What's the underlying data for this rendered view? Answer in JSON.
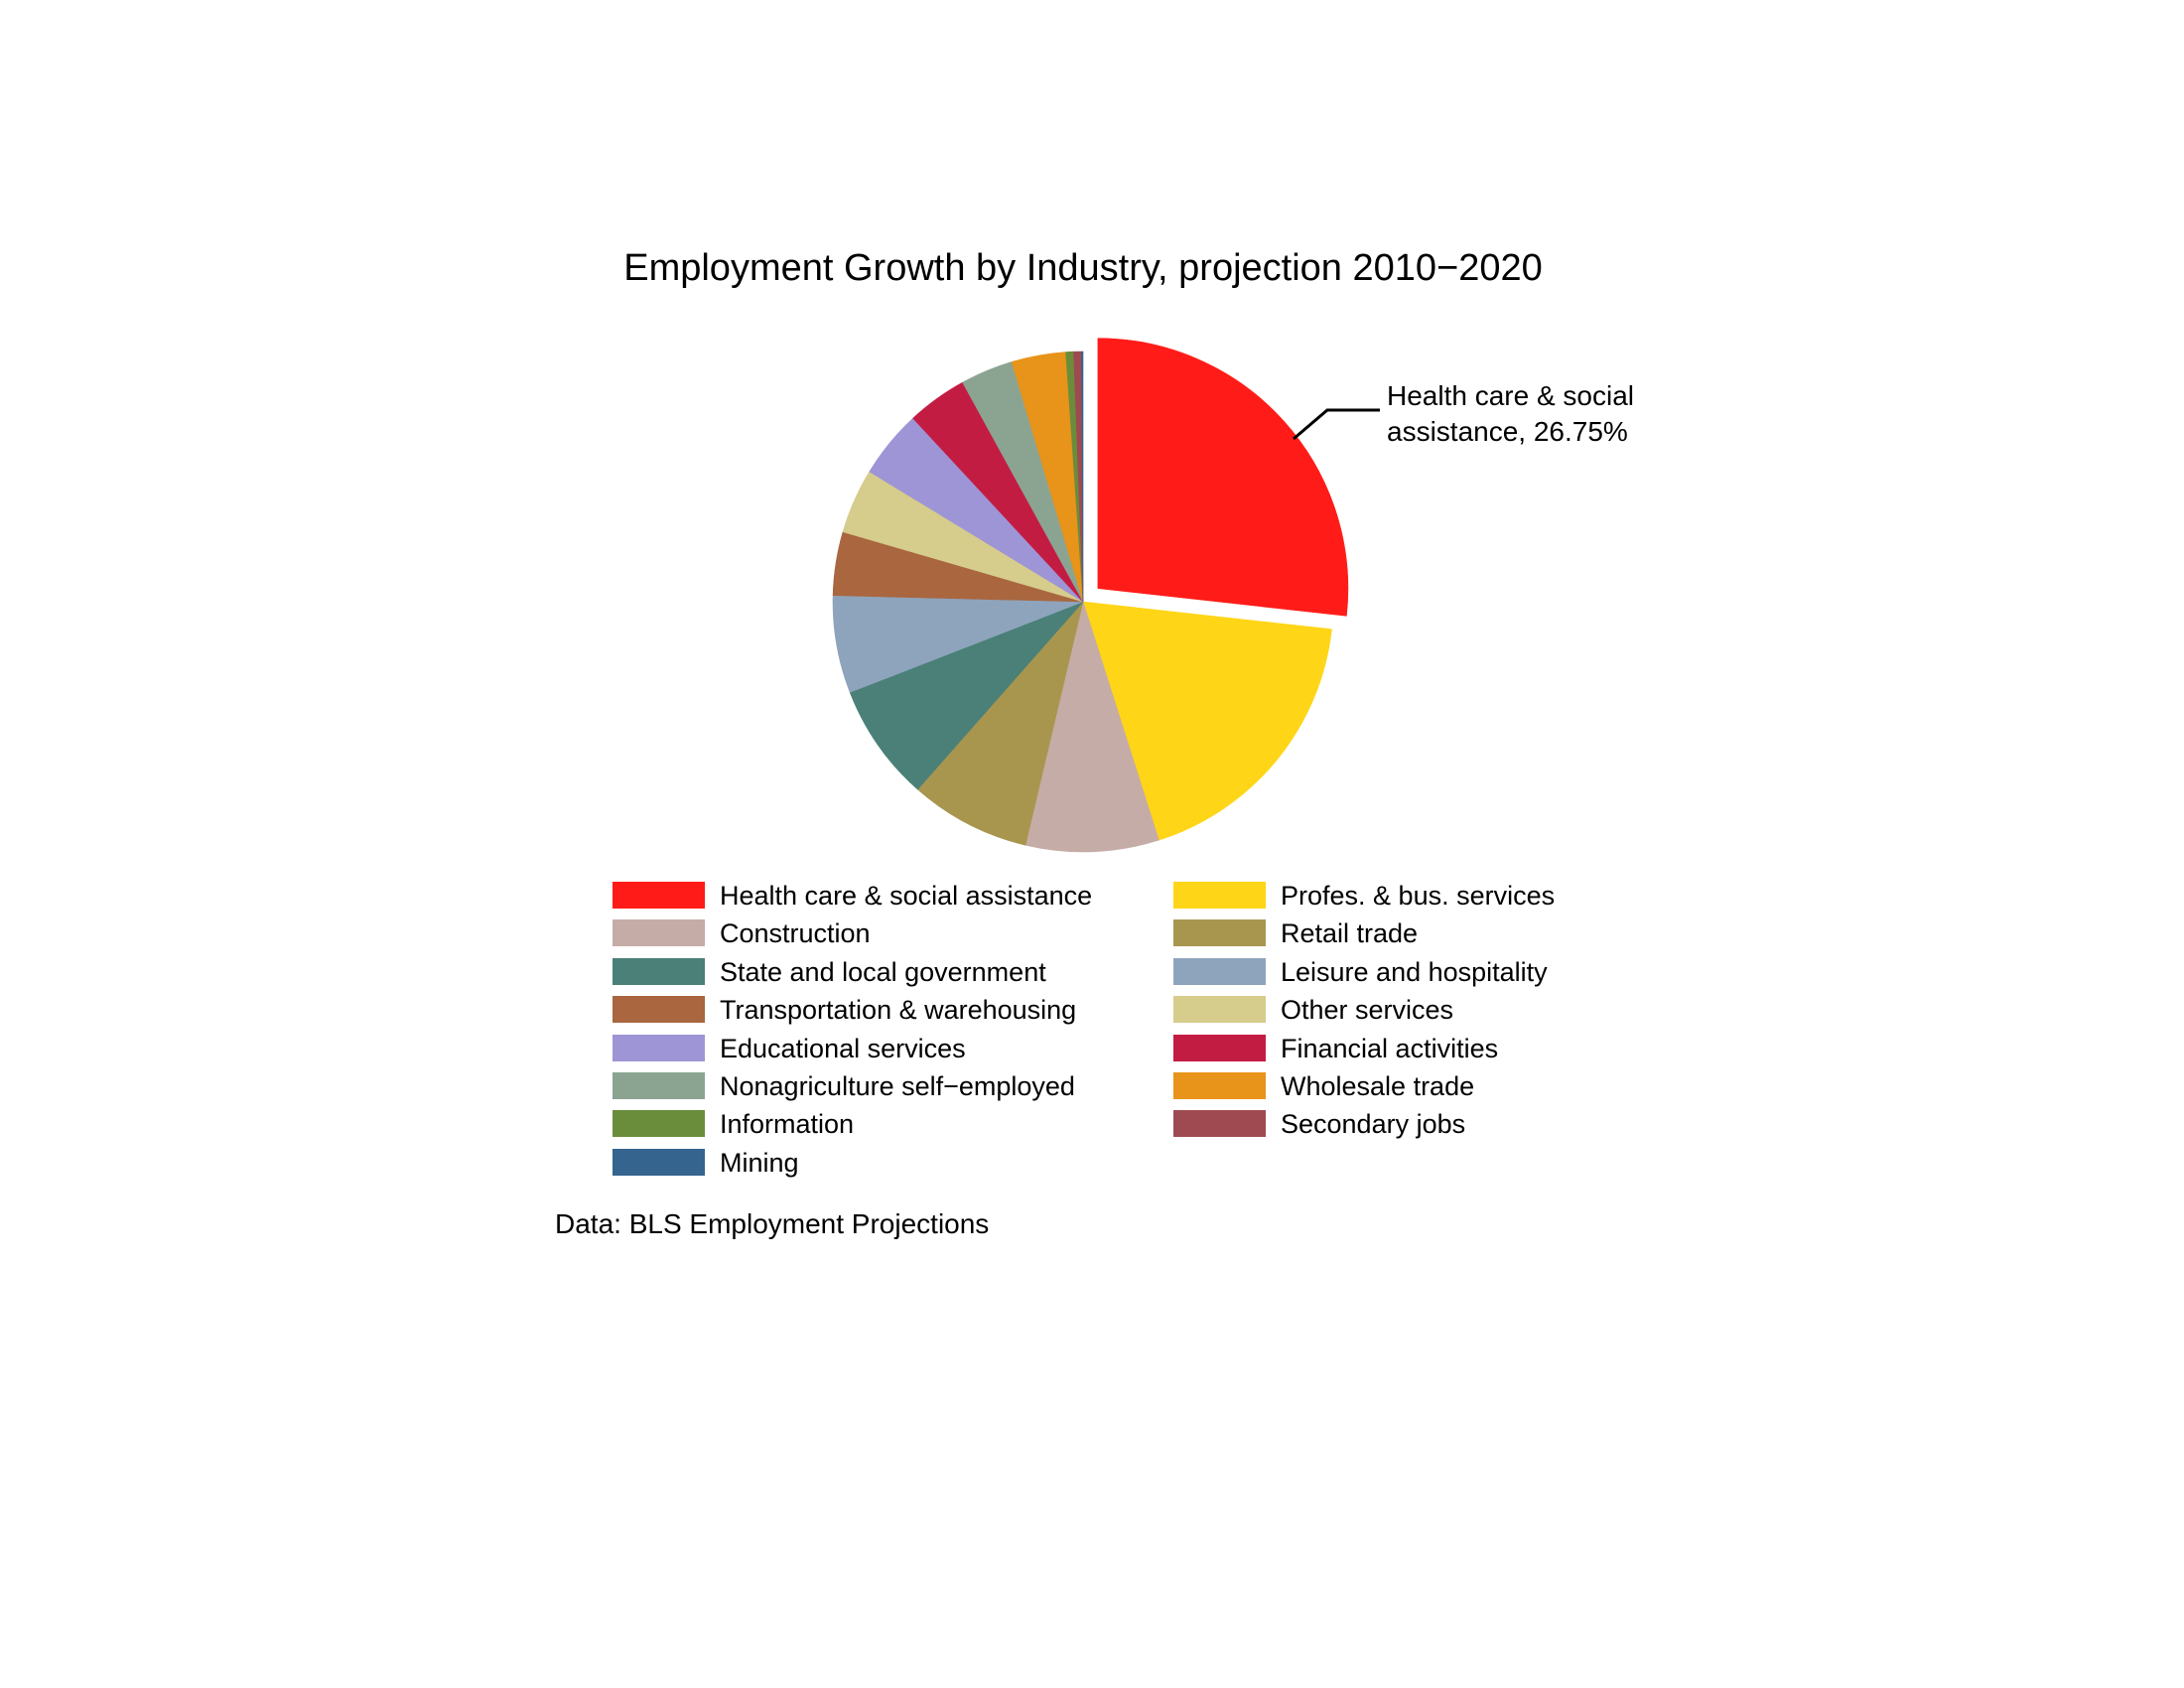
{
  "chart_data": {
    "type": "pie",
    "title": "Employment Growth by Industry, projection 2010−2020",
    "direction": "clockwise",
    "start_angle_deg_from_north": 0,
    "unit": "percent of projected employment growth",
    "legend_position": "bottom-two-columns",
    "slices": [
      {
        "label": "Health care & social assistance",
        "value": 26.75,
        "color": "#FF1B17",
        "exploded": true,
        "legend_column": "left"
      },
      {
        "label": "Profes. & bus. services",
        "value": 18.35,
        "color": "#FFD517",
        "exploded": false,
        "legend_column": "right"
      },
      {
        "label": "Construction",
        "value": 8.6,
        "color": "#C6ACA7",
        "exploded": false,
        "legend_column": "left"
      },
      {
        "label": "Retail trade",
        "value": 7.8,
        "color": "#A8964F",
        "exploded": false,
        "legend_column": "right"
      },
      {
        "label": "State and local government",
        "value": 7.6,
        "color": "#4A8077",
        "exploded": false,
        "legend_column": "left"
      },
      {
        "label": "Leisure and hospitality",
        "value": 6.3,
        "color": "#8EA4BC",
        "exploded": false,
        "legend_column": "right"
      },
      {
        "label": "Transportation & warehousing",
        "value": 4.1,
        "color": "#A9663F",
        "exploded": false,
        "legend_column": "left"
      },
      {
        "label": "Other services",
        "value": 4.2,
        "color": "#D6CC8C",
        "exploded": false,
        "legend_column": "right"
      },
      {
        "label": "Educational services",
        "value": 4.4,
        "color": "#9E95D6",
        "exploded": false,
        "legend_column": "left"
      },
      {
        "label": "Financial activities",
        "value": 3.9,
        "color": "#C31C43",
        "exploded": false,
        "legend_column": "right"
      },
      {
        "label": "Nonagriculture self−employed",
        "value": 3.4,
        "color": "#8BA492",
        "exploded": false,
        "legend_column": "left"
      },
      {
        "label": "Wholesale trade",
        "value": 3.5,
        "color": "#E89319",
        "exploded": false,
        "legend_column": "right"
      },
      {
        "label": "Information",
        "value": 0.5,
        "color": "#6A8D3C",
        "exploded": false,
        "legend_column": "left"
      },
      {
        "label": "Secondary jobs",
        "value": 0.5,
        "color": "#9F4A51",
        "exploded": false,
        "legend_column": "right"
      },
      {
        "label": "Mining",
        "value": 0.1,
        "color": "#35648E",
        "exploded": false,
        "legend_column": "left"
      }
    ],
    "annotation": {
      "line1": "Health care & social",
      "line2": "assistance, 26.75%",
      "full_text": "Health care & social assistance, 26.75%",
      "target_slice": "Health care & social assistance"
    },
    "source_note": "Data: BLS Employment Projections"
  }
}
